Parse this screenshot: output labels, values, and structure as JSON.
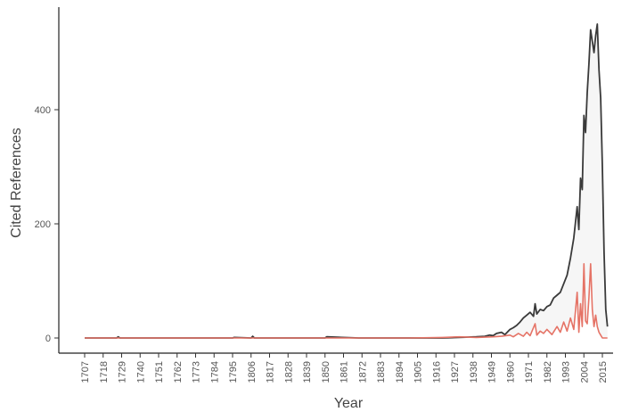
{
  "chart_data": {
    "type": "line",
    "title": "",
    "xlabel": "Year",
    "ylabel": "Cited References",
    "xlim": [
      1700,
      2025
    ],
    "ylim": [
      -25,
      580
    ],
    "x_ticks": [
      1707,
      1718,
      1729,
      1740,
      1751,
      1762,
      1773,
      1784,
      1795,
      1806,
      1817,
      1828,
      1839,
      1850,
      1861,
      1872,
      1883,
      1894,
      1905,
      1916,
      1927,
      1938,
      1949,
      1960,
      1971,
      1982,
      1993,
      2004,
      2015
    ],
    "y_ticks": [
      0,
      200,
      400
    ],
    "grid": false,
    "legend": "none",
    "series": [
      {
        "color": "#3a3a3a",
        "x": [
          1707,
          1720,
          1726,
          1727,
          1728,
          1740,
          1760,
          1790,
          1795,
          1796,
          1806,
          1807,
          1808,
          1830,
          1850,
          1851,
          1870,
          1900,
          1920,
          1930,
          1940,
          1945,
          1948,
          1950,
          1952,
          1955,
          1957,
          1960,
          1962,
          1964,
          1966,
          1968,
          1970,
          1972,
          1974,
          1975,
          1976,
          1978,
          1980,
          1982,
          1984,
          1986,
          1988,
          1990,
          1992,
          1994,
          1996,
          1998,
          2000,
          2001,
          2002,
          2003,
          2004,
          2005,
          2006,
          2007,
          2008,
          2009,
          2010,
          2011,
          2012,
          2013,
          2014,
          2015,
          2016,
          2017,
          2018
        ],
        "y": [
          0,
          0,
          0,
          2,
          0,
          0,
          0,
          0,
          0,
          1,
          0,
          3,
          0,
          0,
          0,
          2,
          0,
          0,
          0,
          1,
          2,
          3,
          5,
          4,
          8,
          10,
          6,
          15,
          18,
          22,
          28,
          35,
          40,
          45,
          38,
          60,
          42,
          50,
          48,
          55,
          58,
          70,
          75,
          80,
          95,
          110,
          140,
          175,
          230,
          190,
          280,
          260,
          390,
          360,
          430,
          480,
          540,
          520,
          500,
          530,
          550,
          470,
          420,
          300,
          150,
          50,
          20
        ]
      },
      {
        "color": "#e57366",
        "x": [
          1707,
          1740,
          1790,
          1800,
          1850,
          1900,
          1920,
          1930,
          1940,
          1950,
          1955,
          1960,
          1962,
          1965,
          1968,
          1970,
          1972,
          1975,
          1976,
          1978,
          1980,
          1982,
          1985,
          1988,
          1990,
          1992,
          1994,
          1996,
          1998,
          2000,
          2001,
          2002,
          2003,
          2004,
          2005,
          2006,
          2007,
          2008,
          2009,
          2010,
          2011,
          2012,
          2013,
          2014,
          2015,
          2016,
          2017,
          2018
        ],
        "y": [
          0,
          0,
          0,
          0,
          0,
          0,
          1,
          2,
          1,
          2,
          3,
          5,
          2,
          8,
          3,
          10,
          4,
          25,
          5,
          12,
          8,
          15,
          6,
          20,
          10,
          28,
          12,
          35,
          15,
          80,
          10,
          60,
          20,
          130,
          30,
          25,
          70,
          130,
          50,
          20,
          40,
          20,
          10,
          5,
          0,
          0,
          0,
          0
        ]
      }
    ]
  }
}
